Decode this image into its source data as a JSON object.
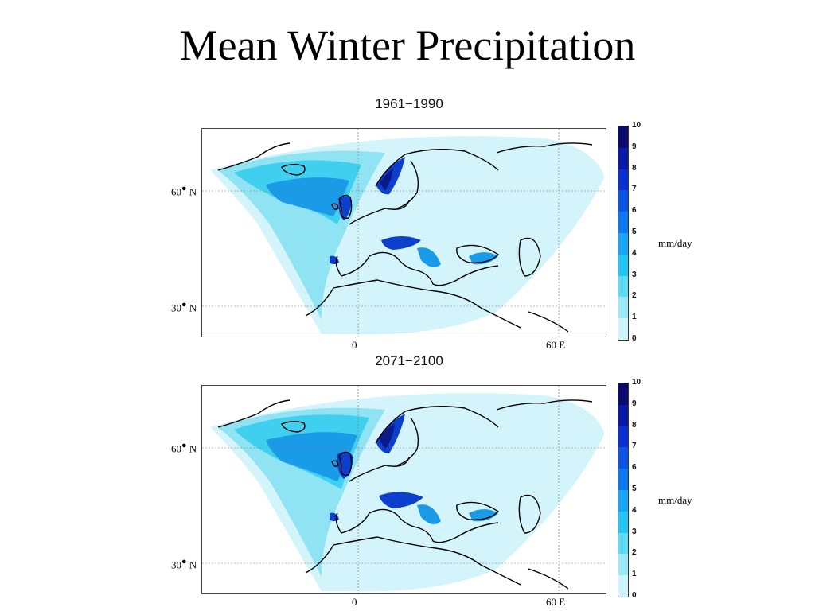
{
  "title": "Mean Winter Precipitation",
  "panels": [
    {
      "period": "1961−1990",
      "lat_labels": [
        "60",
        "30"
      ],
      "lat_suffix": "N",
      "lon_labels": [
        "0",
        "60"
      ],
      "lon_suffix": "E",
      "colorbar_ticks": [
        "10",
        "9",
        "8",
        "7",
        "6",
        "5",
        "4",
        "3",
        "2",
        "1",
        "0"
      ],
      "units": "mm/day"
    },
    {
      "period": "2071−2100",
      "lat_labels": [
        "60",
        "30"
      ],
      "lat_suffix": "N",
      "lon_labels": [
        "0",
        "60"
      ],
      "lon_suffix": "E",
      "colorbar_ticks": [
        "10",
        "9",
        "8",
        "7",
        "6",
        "5",
        "4",
        "3",
        "2",
        "1",
        "0"
      ],
      "units": "mm/day"
    }
  ],
  "colorbar_colors": [
    "#0a0a6e",
    "#0a1aa8",
    "#0a2fd6",
    "#0a55e8",
    "#0a78f0",
    "#16a6f5",
    "#21c8f5",
    "#5fdcf5",
    "#9aeaf7",
    "#cdf5fb"
  ],
  "map_colors": {
    "land_outline": "#000000",
    "grid": "#777777",
    "light": "#d4f4fb",
    "mid": "#8fe3f3",
    "cyan": "#3fd0ef",
    "blue": "#1a9be8",
    "deep": "#0b3fcc",
    "darkest": "#0a1a8a"
  }
}
